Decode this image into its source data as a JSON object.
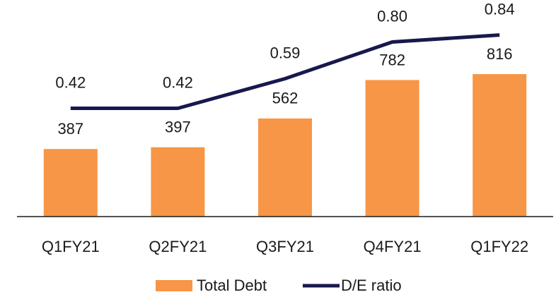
{
  "chart_data": {
    "type": "bar_line",
    "categories": [
      "Q1FY21",
      "Q2FY21",
      "Q3FY21",
      "Q4FY21",
      "Q1FY22"
    ],
    "series": [
      {
        "name": "Total Debt",
        "type": "bar",
        "color": "#f79646",
        "values": [
          387,
          397,
          562,
          782,
          816
        ]
      },
      {
        "name": "D/E ratio",
        "type": "line",
        "axis": "y2",
        "color": "#17194d",
        "values": [
          0.42,
          0.42,
          0.59,
          0.8,
          0.84
        ],
        "value_labels": [
          "0.42",
          "0.42",
          "0.59",
          "0.80",
          "0.84"
        ]
      }
    ],
    "ylim": [
      0,
      1200
    ],
    "y2lim": [
      -0.2,
      1.0
    ],
    "legend": "bottom"
  }
}
